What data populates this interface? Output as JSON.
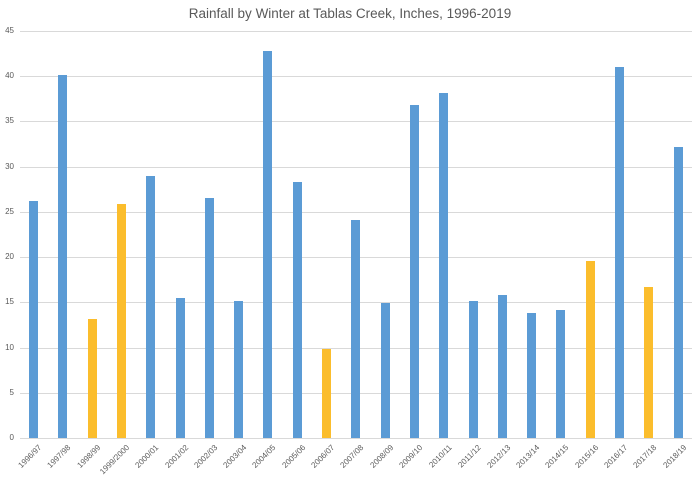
{
  "chart_data": {
    "type": "bar",
    "title": "Rainfall by Winter at Tablas Creek, Inches, 1996-2019",
    "xlabel": "",
    "ylabel": "",
    "ylim": [
      0,
      45
    ],
    "yticks": [
      0,
      5,
      10,
      15,
      20,
      25,
      30,
      35,
      40,
      45
    ],
    "grid": true,
    "legend": null,
    "categories": [
      "1996/97",
      "1997/98",
      "1998/99",
      "1999/2000",
      "2000/01",
      "2001/02",
      "2002/03",
      "2003/04",
      "2004/05",
      "2005/06",
      "2006/07",
      "2007/08",
      "2008/09",
      "2009/10",
      "2010/11",
      "2011/12",
      "2012/13",
      "2013/14",
      "2014/15",
      "2015/16",
      "2016/17",
      "2017/18",
      "2018/19"
    ],
    "values": [
      26.2,
      40.1,
      13.2,
      25.9,
      29.0,
      15.5,
      26.5,
      15.2,
      42.8,
      28.3,
      9.8,
      24.1,
      14.9,
      36.8,
      38.2,
      15.1,
      15.8,
      13.8,
      14.2,
      19.6,
      41.0,
      16.7,
      32.2
    ],
    "bar_colors": [
      "#5b9bd5",
      "#5b9bd5",
      "#fbbd2c",
      "#fbbd2c",
      "#5b9bd5",
      "#5b9bd5",
      "#5b9bd5",
      "#5b9bd5",
      "#5b9bd5",
      "#5b9bd5",
      "#fbbd2c",
      "#5b9bd5",
      "#5b9bd5",
      "#5b9bd5",
      "#5b9bd5",
      "#5b9bd5",
      "#5b9bd5",
      "#5b9bd5",
      "#5b9bd5",
      "#fbbd2c",
      "#5b9bd5",
      "#fbbd2c",
      "#5b9bd5"
    ],
    "colors": {
      "normal": "#5b9bd5",
      "highlight": "#fbbd2c"
    }
  }
}
